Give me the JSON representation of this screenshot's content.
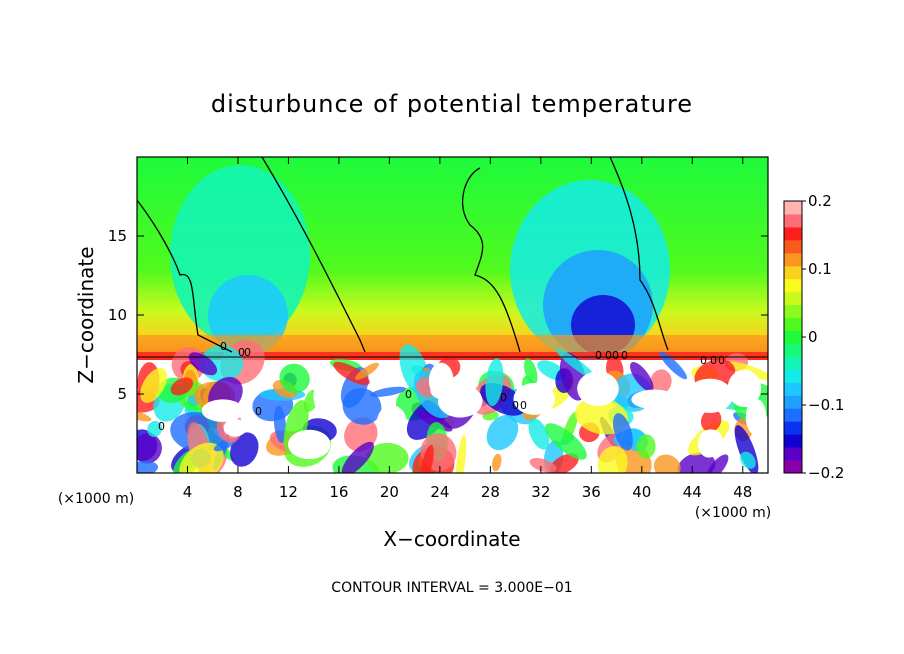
{
  "chart_data": {
    "type": "heatmap",
    "title": "disturbunce of potential temperature",
    "xlabel": "X−coordinate",
    "ylabel": "Z−coordinate",
    "x_unit": "(×1000 m)",
    "y_unit": "(×1000 m)",
    "footnote": "CONTOUR INTERVAL = 3.000E−01",
    "xlim": [
      0,
      50
    ],
    "ylim": [
      0,
      20
    ],
    "x_ticks": [
      4,
      8,
      12,
      16,
      20,
      24,
      28,
      32,
      36,
      40,
      44,
      48
    ],
    "y_ticks": [
      5,
      10,
      15
    ],
    "x_tick_labels": [
      "4",
      "8",
      "12",
      "16",
      "20",
      "24",
      "28",
      "32",
      "36",
      "40",
      "44",
      "48"
    ],
    "y_tick_labels": [
      "5",
      "10",
      "15"
    ],
    "colorbar": {
      "range": [
        -0.2,
        0.2
      ],
      "ticks": [
        -0.2,
        -0.1,
        0,
        0.1,
        0.2
      ],
      "tick_labels": [
        "−0.2",
        "−0.1",
        "0",
        "0.1",
        "0.2"
      ],
      "colors": [
        "#8a00a8",
        "#5a00c8",
        "#1400d2",
        "#0a32f0",
        "#1e6eff",
        "#1ea0ff",
        "#1ec8ff",
        "#14ebe6",
        "#14f5b4",
        "#14fa78",
        "#1efa3c",
        "#50fa1e",
        "#8cfa1e",
        "#c8fa1e",
        "#fafa1e",
        "#fad21e",
        "#fa961e",
        "#fa5a1e",
        "#ff1e1e",
        "#ff6e78",
        "#ffb4b4"
      ]
    },
    "contour_labels": [
      "0",
      "0",
      "0",
      "0",
      "0",
      "0",
      "0",
      "0",
      "0",
      "0",
      "0",
      "0",
      "0",
      "0",
      "0",
      "0"
    ],
    "grid": false
  }
}
